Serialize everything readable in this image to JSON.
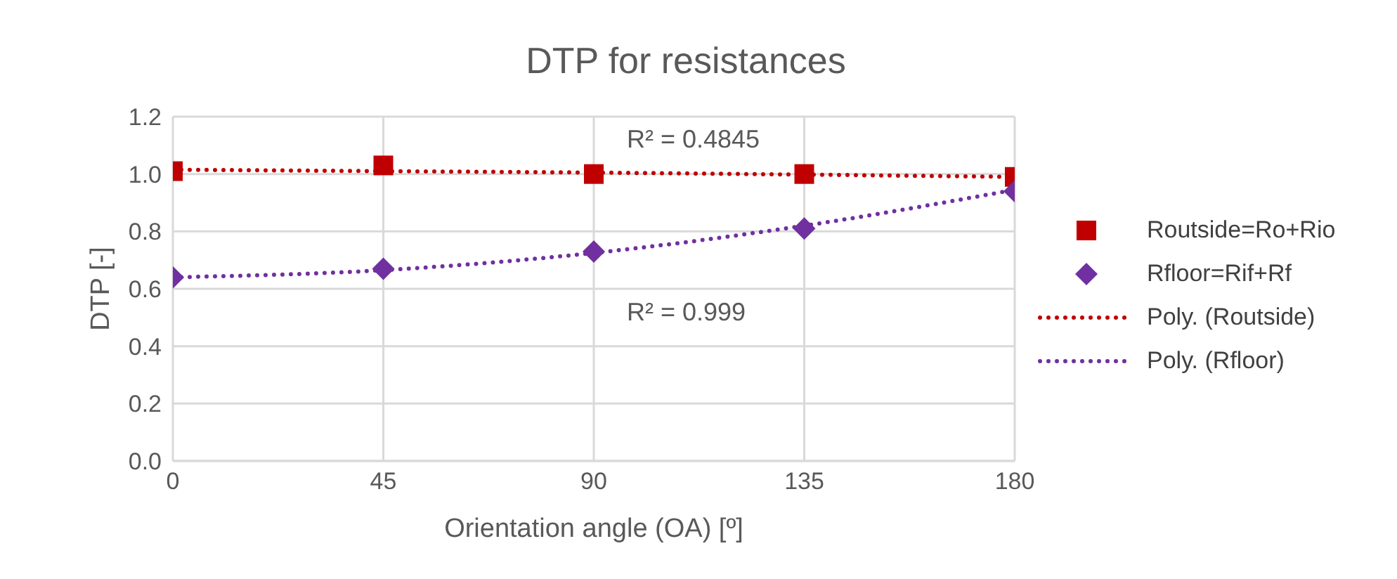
{
  "chart_data": {
    "type": "scatter",
    "title": "DTP for resistances",
    "xlabel": "Orientation angle (OA) [º]",
    "ylabel": "DTP [-]",
    "x": [
      0,
      45,
      90,
      135,
      180
    ],
    "series": [
      {
        "name": "Routside=Ro+Rio",
        "color": "#c00000",
        "marker": "square",
        "values": [
          1.01,
          1.03,
          1.0,
          1.0,
          0.99
        ]
      },
      {
        "name": "Rfloor=Rif+Rf",
        "color": "#7030a0",
        "marker": "diamond",
        "values": [
          0.64,
          0.67,
          0.73,
          0.81,
          0.94
        ]
      },
      {
        "name": "Poly. (Routside)",
        "type": "line",
        "color": "#c00000",
        "line_style": "dotted",
        "marker": "none",
        "x": [
          0,
          45,
          90,
          135,
          180
        ],
        "values": [
          1.015,
          1.01,
          1.005,
          0.998,
          0.99
        ]
      },
      {
        "name": "Poly. (Rfloor)",
        "type": "line",
        "color": "#7030a0",
        "line_style": "dotted",
        "marker": "none",
        "x": [
          0,
          45,
          90,
          135,
          180
        ],
        "values": [
          0.64,
          0.665,
          0.725,
          0.82,
          0.945
        ]
      }
    ],
    "annotations": [
      "R² = 0.4845",
      "R² = 0.999"
    ],
    "xlim": [
      0,
      180
    ],
    "xticks": [
      0,
      45,
      90,
      135,
      180
    ],
    "ylim": [
      0,
      1.2
    ],
    "yticks": [
      {
        "value": 0,
        "label": "0.0"
      },
      {
        "value": 0.2,
        "label": "0.2"
      },
      {
        "value": 0.4,
        "label": "0.4"
      },
      {
        "value": 0.6,
        "label": "0.6"
      },
      {
        "value": 0.8,
        "label": "0.8"
      },
      {
        "value": 1,
        "label": "1.0"
      },
      {
        "value": 1.2,
        "label": "1.2"
      }
    ],
    "grid": true,
    "legend": "right"
  }
}
